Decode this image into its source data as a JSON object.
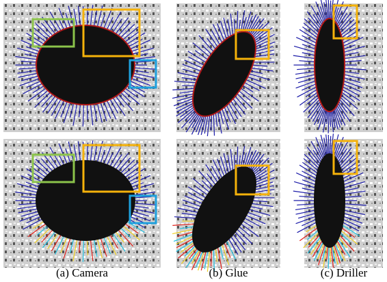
{
  "captions": [
    "(a) Camera",
    "(b) Glue",
    "(c) Driller"
  ]
}
